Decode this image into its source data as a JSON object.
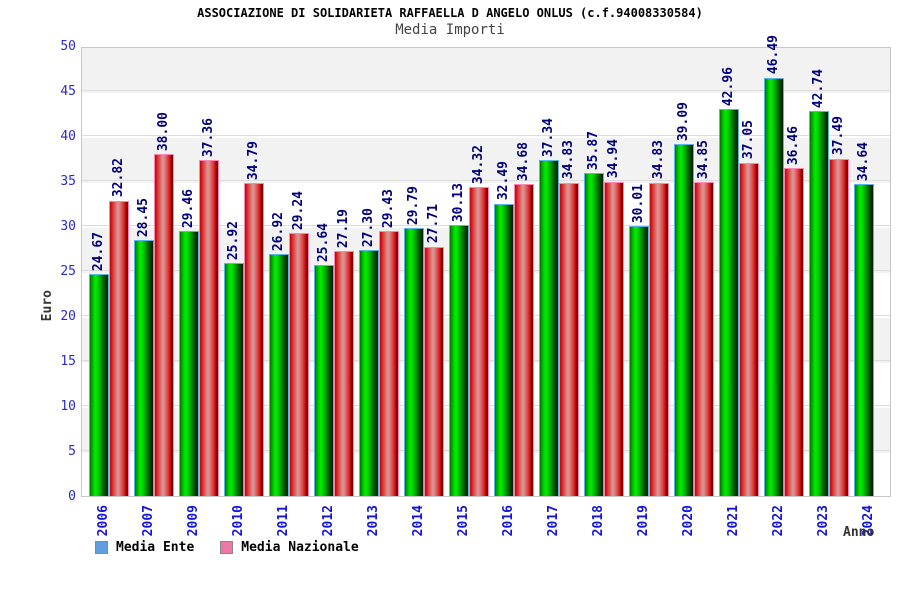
{
  "header": {
    "title": "ASSOCIAZIONE DI SOLIDARIETA RAFFAELLA D ANGELO ONLUS (c.f.94008330584)",
    "subtitle": "Media Importi"
  },
  "chart_data": {
    "type": "bar",
    "title": "ASSOCIAZIONE DI SOLIDARIETA RAFFAELLA D ANGELO ONLUS (c.f.94008330584)",
    "subtitle": "Media Importi",
    "categories": [
      "2006",
      "2007",
      "2009",
      "2010",
      "2011",
      "2012",
      "2013",
      "2014",
      "2015",
      "2016",
      "2017",
      "2018",
      "2019",
      "2020",
      "2021",
      "2022",
      "2023",
      "2024"
    ],
    "series": [
      {
        "name": "Media Ente",
        "legend_color": "#5f9fdf",
        "bar_color": "green",
        "values": [
          24.67,
          28.45,
          29.46,
          25.92,
          26.92,
          25.64,
          27.3,
          29.79,
          30.13,
          32.49,
          37.34,
          35.87,
          30.01,
          39.09,
          42.96,
          46.49,
          42.74,
          34.64
        ]
      },
      {
        "name": "Media Nazionale",
        "legend_color": "#ee77aa",
        "bar_color": "red",
        "values": [
          32.82,
          38.0,
          37.36,
          34.79,
          29.24,
          27.19,
          29.43,
          27.71,
          34.32,
          34.68,
          34.83,
          34.94,
          34.83,
          34.85,
          37.05,
          36.46,
          37.49,
          null
        ]
      }
    ],
    "xlabel": "Anno",
    "ylabel": "Euro",
    "ylim": [
      0,
      50
    ],
    "ytick_step": 5,
    "y_ticks": [
      0,
      5,
      10,
      15,
      20,
      25,
      30,
      35,
      40,
      45,
      50
    ],
    "grid": true,
    "band_colors": [
      "#ffffff",
      "#f2f2f2"
    ],
    "legend_position": "bottom-left",
    "value_label_color": "#00007d",
    "axis_tick_color": "#2a2ad0",
    "category_label_color": "#1414dc"
  }
}
